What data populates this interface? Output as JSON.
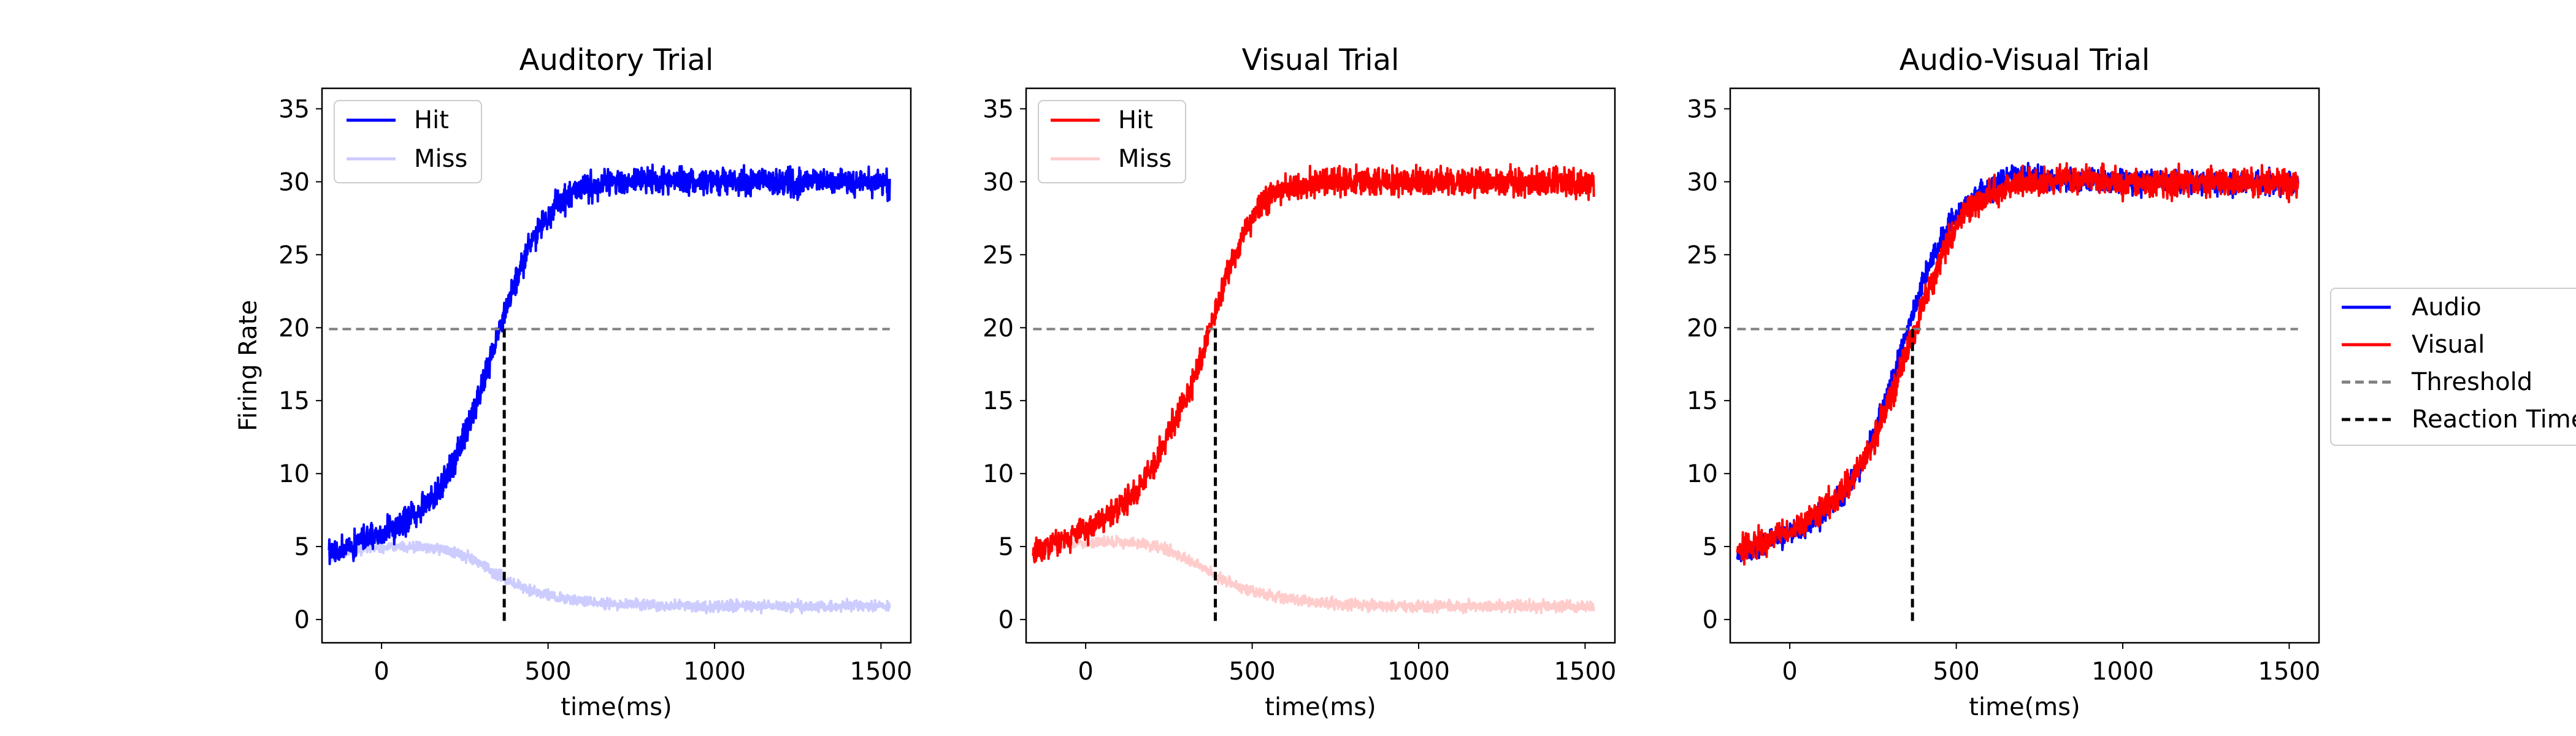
{
  "chart_data": [
    {
      "type": "line",
      "title": "Auditory Trial",
      "xlabel": "time(ms)",
      "ylabel": "Firing Rate",
      "xlim": [
        -120,
        1560
      ],
      "ylim": [
        -1.5,
        36.5
      ],
      "xticks": [
        0,
        500,
        1000,
        1500
      ],
      "yticks": [
        0,
        5,
        10,
        15,
        20,
        25,
        30,
        35
      ],
      "legend_position": "upper-left",
      "series": [
        {
          "name": "Hit",
          "color": "#0000ff",
          "alpha": 1.0,
          "x": [
            -100,
            0,
            100,
            200,
            250,
            300,
            350,
            400,
            450,
            500,
            550,
            600,
            700,
            800,
            1000,
            1200,
            1500
          ],
          "y": [
            4.5,
            5.5,
            6.5,
            8.5,
            10.5,
            13.5,
            17.0,
            21.0,
            24.5,
            27.0,
            28.5,
            29.5,
            30.0,
            30.2,
            30.1,
            30.1,
            30.0
          ],
          "noise": 1.4
        },
        {
          "name": "Miss",
          "color": "#0000ff",
          "alpha": 0.2,
          "x": [
            -100,
            0,
            100,
            200,
            250,
            300,
            350,
            400,
            450,
            500,
            600,
            700,
            800,
            1000,
            1200,
            1500
          ],
          "y": [
            4.5,
            5.0,
            5.1,
            5.0,
            4.8,
            4.3,
            3.6,
            2.9,
            2.3,
            1.9,
            1.4,
            1.2,
            1.1,
            1.0,
            1.0,
            1.0
          ],
          "noise": 0.55
        }
      ],
      "threshold": {
        "y": 20,
        "x_range": [
          -100,
          1500
        ],
        "color": "#808080"
      },
      "reaction_time": {
        "x": 400,
        "y_range": [
          0,
          20
        ],
        "color": "#000000"
      }
    },
    {
      "type": "line",
      "title": "Visual Trial",
      "xlabel": "time(ms)",
      "ylabel": "",
      "xlim": [
        -120,
        1560
      ],
      "ylim": [
        -1.5,
        36.5
      ],
      "xticks": [
        0,
        500,
        1000,
        1500
      ],
      "yticks": [
        0,
        5,
        10,
        15,
        20,
        25,
        30,
        35
      ],
      "legend_position": "upper-left",
      "series": [
        {
          "name": "Hit",
          "color": "#ff0000",
          "alpha": 1.0,
          "x": [
            -100,
            0,
            100,
            200,
            250,
            300,
            350,
            400,
            450,
            500,
            550,
            600,
            700,
            800,
            1000,
            1200,
            1500
          ],
          "y": [
            4.8,
            5.8,
            7.0,
            9.0,
            11.0,
            13.5,
            16.0,
            19.5,
            23.5,
            26.5,
            28.5,
            29.5,
            30.0,
            30.2,
            30.1,
            30.1,
            30.0
          ],
          "noise": 1.4
        },
        {
          "name": "Miss",
          "color": "#ff0000",
          "alpha": 0.2,
          "x": [
            -100,
            0,
            100,
            200,
            250,
            300,
            350,
            400,
            450,
            500,
            600,
            700,
            800,
            1000,
            1200,
            1500
          ],
          "y": [
            5.0,
            5.3,
            5.4,
            5.3,
            5.1,
            4.7,
            4.1,
            3.4,
            2.7,
            2.2,
            1.6,
            1.3,
            1.1,
            1.0,
            1.0,
            1.0
          ],
          "noise": 0.55
        }
      ],
      "threshold": {
        "y": 20,
        "x_range": [
          -100,
          1500
        ],
        "color": "#808080"
      },
      "reaction_time": {
        "x": 420,
        "y_range": [
          0,
          20
        ],
        "color": "#000000"
      }
    },
    {
      "type": "line",
      "title": "Audio-Visual Trial",
      "xlabel": "time(ms)",
      "ylabel": "",
      "xlim": [
        -120,
        1560
      ],
      "ylim": [
        -1.5,
        36.5
      ],
      "xticks": [
        0,
        500,
        1000,
        1500
      ],
      "yticks": [
        0,
        5,
        10,
        15,
        20,
        25,
        30,
        35
      ],
      "legend_position": "outside-right",
      "series": [
        {
          "name": "Audio",
          "color": "#0000ff",
          "alpha": 1.0,
          "x": [
            -100,
            0,
            100,
            200,
            250,
            300,
            350,
            400,
            450,
            500,
            550,
            600,
            700,
            800,
            1000,
            1200,
            1500
          ],
          "y": [
            4.5,
            5.5,
            6.5,
            8.5,
            10.5,
            13.5,
            17.0,
            21.0,
            24.5,
            27.0,
            28.5,
            29.5,
            30.5,
            30.3,
            30.1,
            30.1,
            30.0
          ],
          "noise": 1.2
        },
        {
          "name": "Visual",
          "color": "#ff0000",
          "alpha": 1.0,
          "x": [
            -100,
            0,
            100,
            200,
            250,
            300,
            350,
            400,
            450,
            500,
            550,
            600,
            700,
            800,
            1000,
            1200,
            1500
          ],
          "y": [
            4.8,
            5.6,
            6.8,
            8.8,
            10.5,
            13.0,
            16.0,
            19.5,
            23.0,
            26.0,
            28.0,
            29.0,
            30.0,
            30.2,
            30.1,
            30.1,
            30.0
          ],
          "noise": 1.4
        }
      ],
      "threshold": {
        "name": "Threshold",
        "y": 20,
        "x_range": [
          -100,
          1500
        ],
        "color": "#808080"
      },
      "reaction_time": {
        "name": "Reaction Time",
        "x": 400,
        "y_range": [
          0,
          20
        ],
        "color": "#000000"
      }
    }
  ]
}
